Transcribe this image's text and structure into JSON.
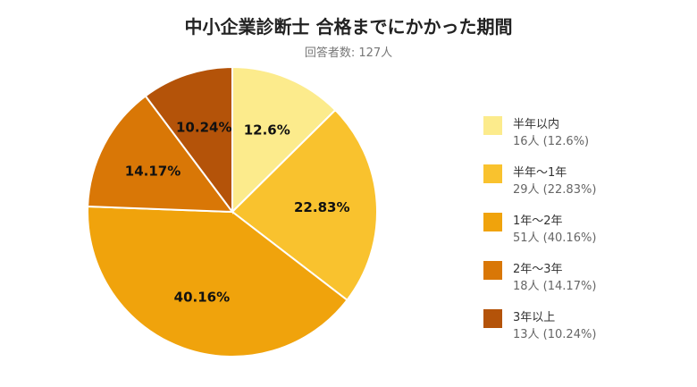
{
  "chart_data": {
    "type": "pie",
    "title": "中小企業診断士 合格までにかかった期間",
    "subtitle": "回答者数: 127人",
    "legend_position": "right",
    "slices": [
      {
        "name": "半年以内",
        "count": 16,
        "percent": 12.6,
        "label": "12.6%",
        "legend_value": "16人 (12.6%)",
        "color": "#FCEB8C"
      },
      {
        "name": "半年〜1年",
        "count": 29,
        "percent": 22.83,
        "label": "22.83%",
        "legend_value": "29人 (22.83%)",
        "color": "#F9C22E"
      },
      {
        "name": "1年〜2年",
        "count": 51,
        "percent": 40.16,
        "label": "40.16%",
        "legend_value": "51人 (40.16%)",
        "color": "#F0A30C"
      },
      {
        "name": "2年〜3年",
        "count": 18,
        "percent": 14.17,
        "label": "14.17%",
        "legend_value": "18人 (14.17%)",
        "color": "#D97706"
      },
      {
        "name": "3年以上",
        "count": 13,
        "percent": 10.24,
        "label": "10.24%",
        "legend_value": "13人 (10.24%)",
        "color": "#B45309"
      }
    ]
  }
}
